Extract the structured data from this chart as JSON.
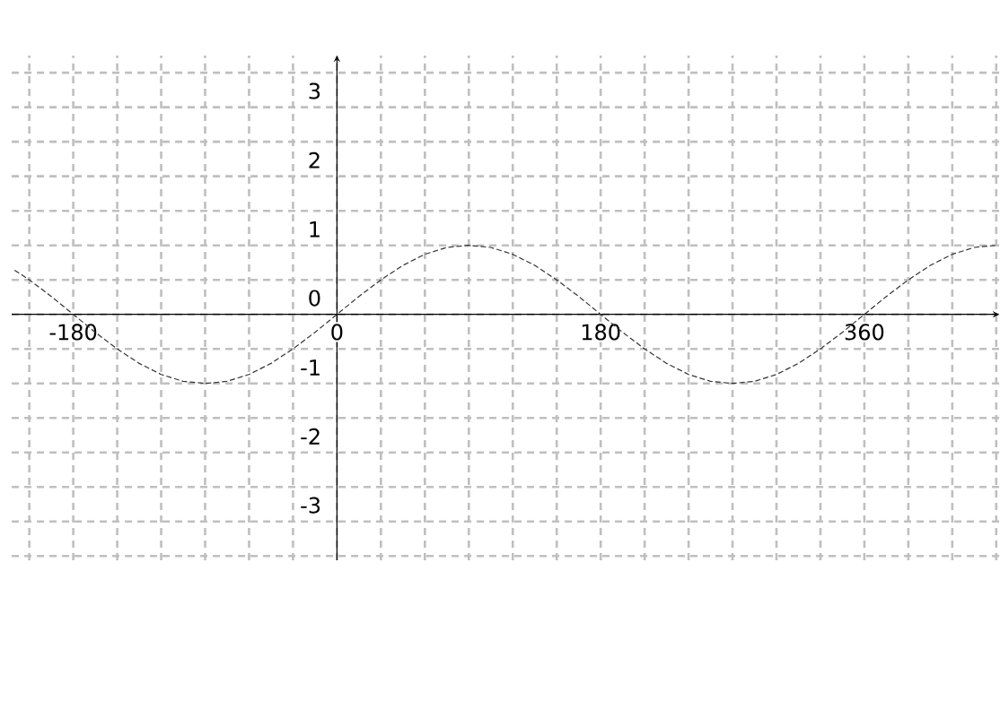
{
  "chart_data": {
    "type": "line",
    "x": [
      -220,
      -210,
      -195,
      -180,
      -165,
      -150,
      -135,
      -120,
      -105,
      -90,
      -75,
      -60,
      -45,
      -30,
      -15,
      0,
      15,
      30,
      45,
      60,
      75,
      90,
      105,
      120,
      135,
      150,
      165,
      180,
      195,
      210,
      225,
      240,
      255,
      270,
      285,
      300,
      315,
      330,
      345,
      360,
      375,
      390,
      405,
      420,
      435,
      450
    ],
    "series": [
      {
        "color": "#333333",
        "line_style": "dashed",
        "values": [
          0.64,
          0.5,
          0.26,
          0,
          -0.26,
          -0.5,
          -0.71,
          -0.87,
          -0.97,
          -1,
          -0.97,
          -0.87,
          -0.71,
          -0.5,
          -0.26,
          0,
          0.26,
          0.5,
          0.71,
          0.87,
          0.97,
          1,
          0.97,
          0.87,
          0.71,
          0.5,
          0.26,
          0,
          -0.26,
          -0.5,
          -0.71,
          -0.87,
          -0.97,
          -1,
          -0.97,
          -0.87,
          -0.71,
          -0.5,
          -0.26,
          0,
          0.26,
          0.5,
          0.71,
          0.87,
          0.97,
          1
        ]
      }
    ],
    "xlim": [
      -222,
      452
    ],
    "ylim": [
      -3.56,
      3.75
    ],
    "xticks": [
      {
        "value": -210,
        "label": null
      },
      -180,
      {
        "value": -150,
        "label": null
      },
      {
        "value": -120,
        "label": null
      },
      {
        "value": -90,
        "label": null
      },
      {
        "value": -60,
        "label": null
      },
      {
        "value": -30,
        "label": null
      },
      0,
      {
        "value": 30,
        "label": null
      },
      {
        "value": 60,
        "label": null
      },
      {
        "value": 90,
        "label": null
      },
      {
        "value": 120,
        "label": null
      },
      {
        "value": 150,
        "label": null
      },
      180,
      {
        "value": 210,
        "label": null
      },
      {
        "value": 240,
        "label": null
      },
      {
        "value": 270,
        "label": null
      },
      {
        "value": 300,
        "label": null
      },
      {
        "value": 330,
        "label": null
      },
      360,
      {
        "value": 390,
        "label": null
      },
      {
        "value": 420,
        "label": null
      },
      {
        "value": 450,
        "label": null
      }
    ],
    "yticks": [
      {
        "value": -3.5,
        "label": null
      },
      -3,
      {
        "value": -2.5,
        "label": null
      },
      -2,
      {
        "value": -1.5,
        "label": null
      },
      -1,
      {
        "value": -0.5,
        "label": null
      },
      0,
      {
        "value": 0.5,
        "label": null
      },
      1,
      {
        "value": 1.5,
        "label": null
      },
      2,
      {
        "value": 2.5,
        "label": null
      },
      3,
      {
        "value": 3.5,
        "label": null
      }
    ],
    "grid": true,
    "marker": "none"
  }
}
